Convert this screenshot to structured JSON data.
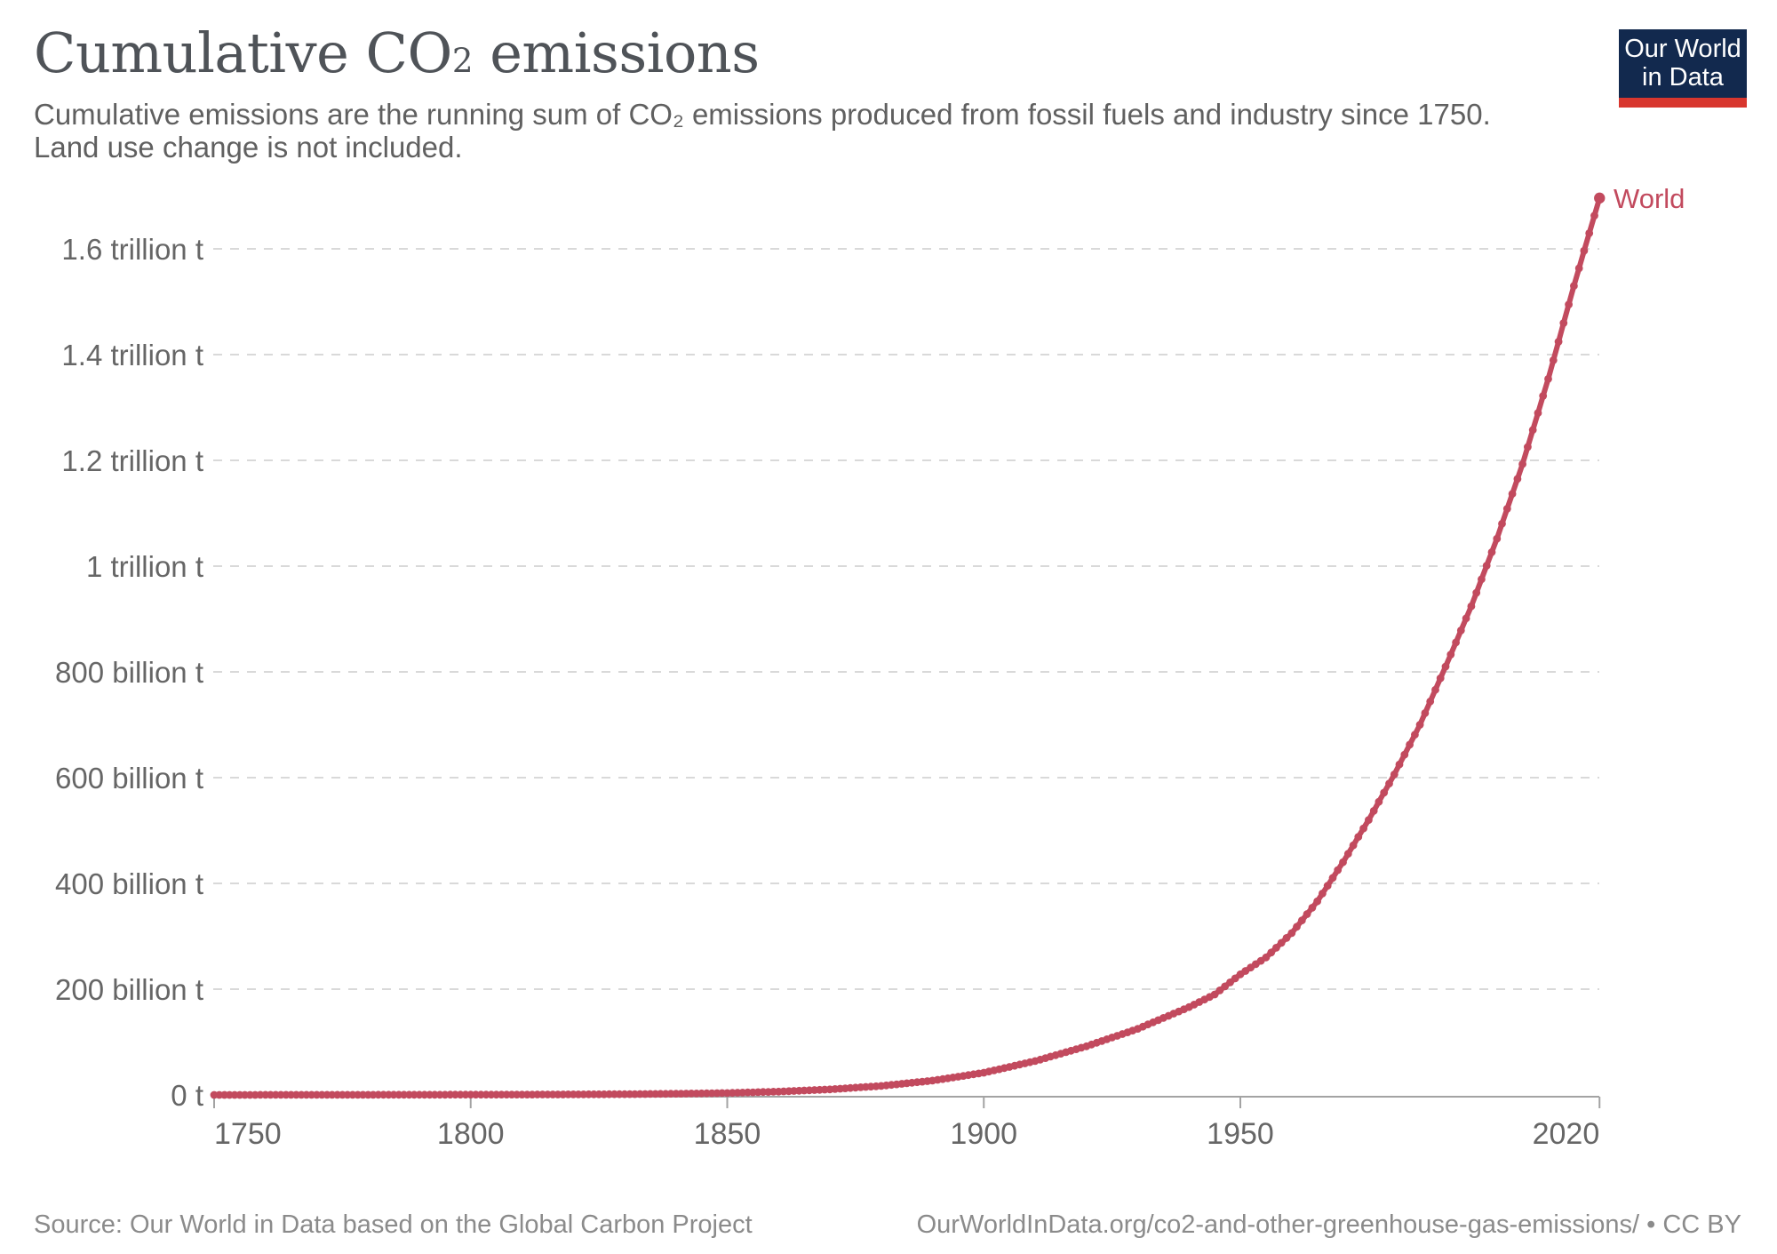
{
  "header": {
    "title_pre": "Cumulative CO",
    "title_sub": "2",
    "title_post": " emissions",
    "subtitle_line1": "Cumulative emissions are the running sum of CO₂ emissions produced from fossil fuels and industry since 1750.",
    "subtitle_line2": "Land use change is not included.",
    "logo": {
      "line1": "Our World",
      "line2": "in Data"
    }
  },
  "footer": {
    "source": "Source: Our World in Data based on the Global Carbon Project",
    "link": "OurWorldInData.org/co2-and-other-greenhouse-gas-emissions/ • CC BY"
  },
  "colors": {
    "line": "#c24a5e",
    "grid": "#d9d9d9",
    "axis": "#a3a3a3",
    "tick_label": "#666666",
    "title": "#4f5358",
    "subtitle": "#606060",
    "footer": "#8b8b8b",
    "logo_bg": "#12294e",
    "logo_stripe": "#d8362e"
  },
  "chart_data": {
    "type": "line",
    "title": "Cumulative CO₂ emissions",
    "xlabel": "",
    "ylabel": "",
    "values_unit": "billion tonnes of CO₂",
    "grid": "horizontal-dashed",
    "legend_position": "end-of-line",
    "x_range": [
      1750,
      2020
    ],
    "y_range": [
      0,
      1700
    ],
    "x_ticks": [
      1750,
      1800,
      1850,
      1900,
      1950,
      2020
    ],
    "y_ticks": [
      {
        "value": 0,
        "label": "0 t"
      },
      {
        "value": 200,
        "label": "200 billion t"
      },
      {
        "value": 400,
        "label": "400 billion t"
      },
      {
        "value": 600,
        "label": "600 billion t"
      },
      {
        "value": 800,
        "label": "800 billion t"
      },
      {
        "value": 1000,
        "label": "1 trillion t"
      },
      {
        "value": 1200,
        "label": "1.2 trillion t"
      },
      {
        "value": 1400,
        "label": "1.4 trillion t"
      },
      {
        "value": 1600,
        "label": "1.6 trillion t"
      }
    ],
    "series": [
      {
        "name": "World",
        "color": "#c24a5e",
        "points": [
          [
            1750,
            0.0
          ],
          [
            1760,
            0.1
          ],
          [
            1770,
            0.16
          ],
          [
            1780,
            0.24
          ],
          [
            1790,
            0.35
          ],
          [
            1800,
            0.47
          ],
          [
            1810,
            0.68
          ],
          [
            1820,
            0.97
          ],
          [
            1830,
            1.4
          ],
          [
            1840,
            2.2
          ],
          [
            1850,
            3.6
          ],
          [
            1860,
            6.3
          ],
          [
            1870,
            10.5
          ],
          [
            1880,
            17
          ],
          [
            1890,
            27
          ],
          [
            1900,
            42
          ],
          [
            1910,
            64
          ],
          [
            1920,
            92
          ],
          [
            1930,
            125
          ],
          [
            1940,
            166
          ],
          [
            1945,
            190
          ],
          [
            1950,
            228
          ],
          [
            1955,
            260
          ],
          [
            1960,
            306
          ],
          [
            1965,
            366
          ],
          [
            1970,
            440
          ],
          [
            1975,
            520
          ],
          [
            1980,
            606
          ],
          [
            1985,
            700
          ],
          [
            1990,
            810
          ],
          [
            1995,
            924
          ],
          [
            2000,
            1052
          ],
          [
            2005,
            1193
          ],
          [
            2010,
            1354
          ],
          [
            2015,
            1530
          ],
          [
            2020,
            1696
          ]
        ]
      }
    ]
  }
}
